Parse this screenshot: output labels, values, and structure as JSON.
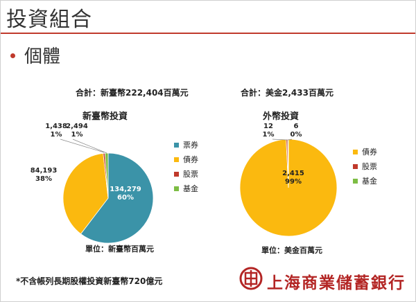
{
  "page": {
    "title": "投資組合",
    "subtitle": "個體",
    "footnote": "*不含帳列長期股權投資新臺幣720億元",
    "bank_name": "上海商業儲蓄銀行",
    "accent": "#c0392b"
  },
  "charts_text": {
    "left_total": "合計：新臺幣222,404百萬元",
    "right_total": "合計：美金2,433百萬元",
    "left_unit": "單位：新臺幣百萬元",
    "right_unit": "單位：美金百萬元"
  },
  "chart_data": [
    {
      "type": "pie",
      "title": "新臺幣投資",
      "categories": [
        "票券",
        "債券",
        "股票",
        "基金"
      ],
      "values": [
        134279,
        84193,
        1438,
        2494
      ],
      "percent_labels": [
        "60%",
        "38%",
        "1%",
        "1%"
      ],
      "value_labels": [
        "134,279",
        "84,193",
        "1,438",
        "2,494"
      ],
      "colors": [
        "#3b93a8",
        "#fbb90f",
        "#c0392b",
        "#7dbd44"
      ],
      "legend": [
        "票券",
        "債券",
        "股票",
        "基金"
      ],
      "legend_position": "right"
    },
    {
      "type": "pie",
      "title": "外幣投資",
      "categories": [
        "債券",
        "股票",
        "基金"
      ],
      "values": [
        2415,
        12,
        6
      ],
      "percent_labels": [
        "99%",
        "1%",
        "0%"
      ],
      "value_labels": [
        "2,415",
        "12",
        "6"
      ],
      "colors": [
        "#fbb90f",
        "#c0392b",
        "#7dbd44"
      ],
      "legend": [
        "債券",
        "股票",
        "基金"
      ],
      "legend_position": "right"
    }
  ]
}
